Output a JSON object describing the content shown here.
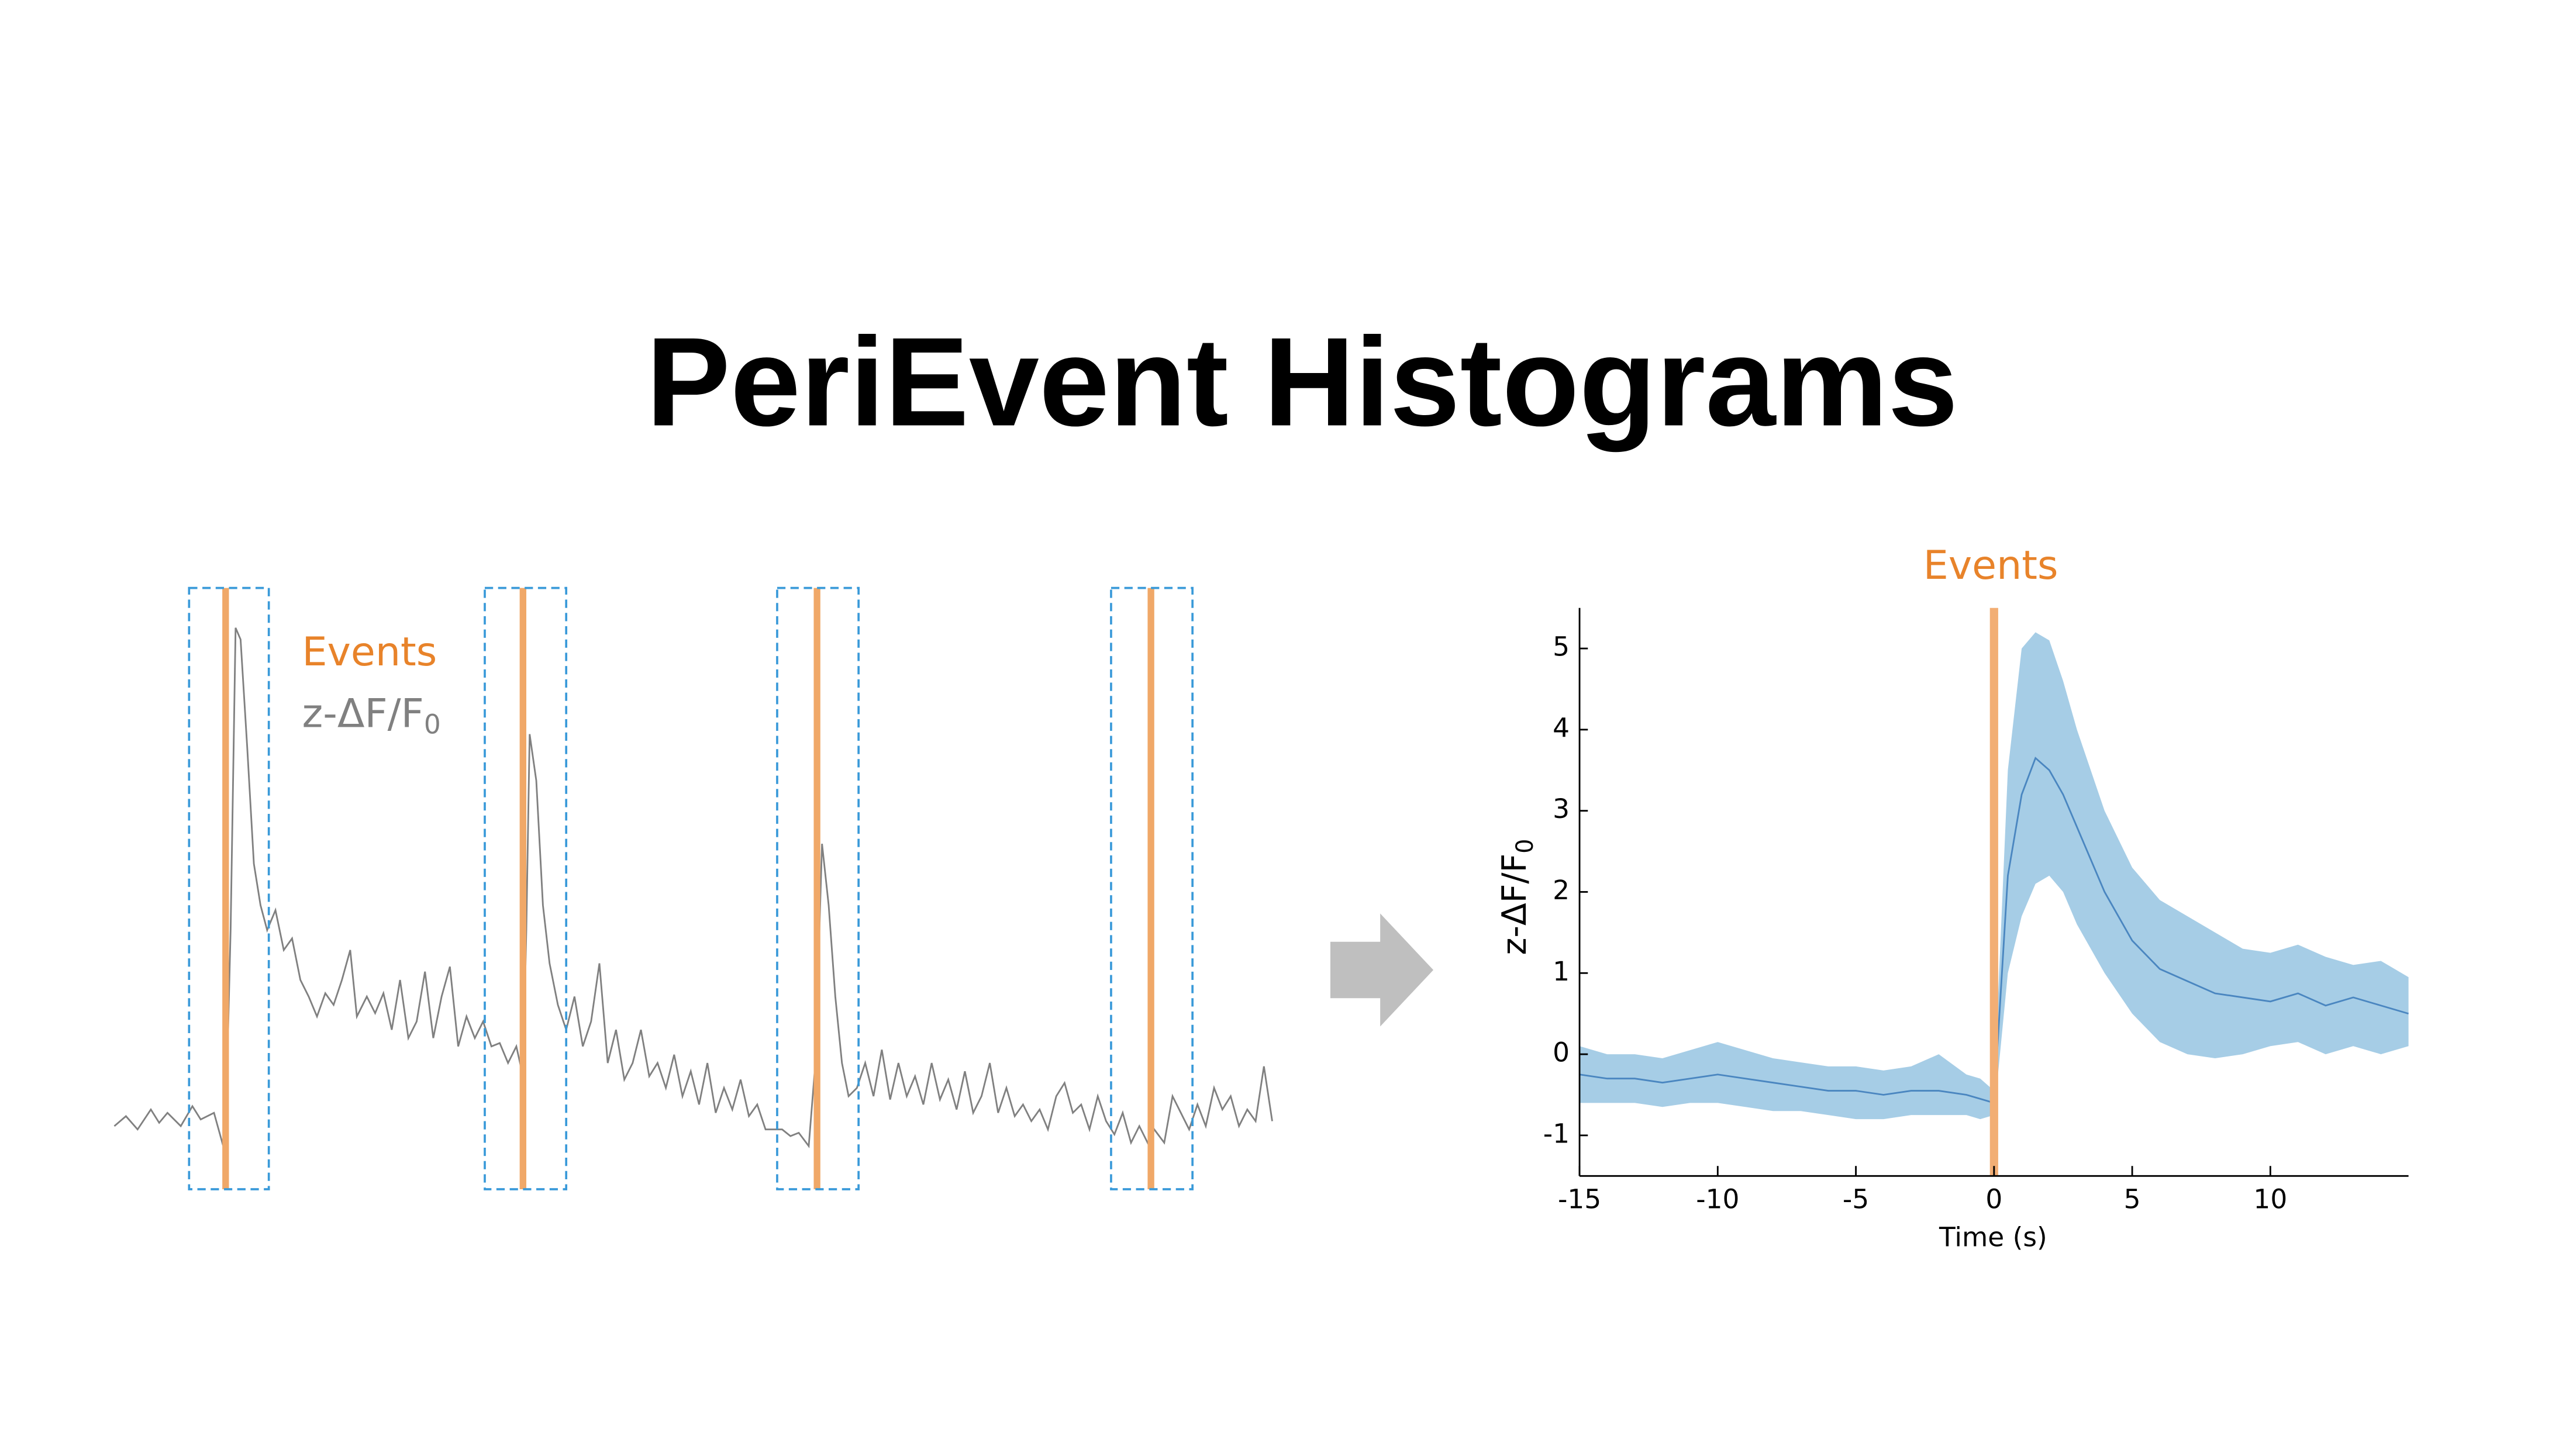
{
  "title": "PeriEvent Histograms",
  "schematic": {
    "events_label": "Events",
    "trace_label": {
      "main": "z-ΔF/F",
      "sub": "0"
    }
  },
  "chart_data": {
    "type": "line",
    "annotation": "Events",
    "x_label": "Time (s)",
    "y_label": {
      "main": "z-ΔF/F",
      "sub": "0"
    },
    "event_x": 0,
    "event_color": "#f2ae74",
    "x": [
      -15,
      -14,
      -13,
      -12,
      -11,
      -10,
      -9,
      -8,
      -7,
      -6,
      -5,
      -4,
      -3,
      -2,
      -1,
      -0.5,
      0,
      0.5,
      1,
      1.5,
      2,
      2.5,
      3,
      4,
      5,
      6,
      7,
      8,
      9,
      10,
      11,
      12,
      13,
      14,
      15
    ],
    "series": [
      {
        "color": "#4a86c0",
        "band_color": "#a6cde6",
        "values": [
          -0.25,
          -0.3,
          -0.3,
          -0.35,
          -0.3,
          -0.25,
          -0.3,
          -0.35,
          -0.4,
          -0.45,
          -0.45,
          -0.5,
          -0.45,
          -0.45,
          -0.5,
          -0.55,
          -0.6,
          2.2,
          3.2,
          3.65,
          3.5,
          3.2,
          2.8,
          2.0,
          1.4,
          1.05,
          0.9,
          0.75,
          0.7,
          0.65,
          0.75,
          0.6,
          0.7,
          0.6,
          0.5
        ],
        "upper": [
          0.1,
          0.0,
          0.0,
          -0.05,
          0.05,
          0.15,
          0.05,
          -0.05,
          -0.1,
          -0.15,
          -0.15,
          -0.2,
          -0.15,
          0.0,
          -0.25,
          -0.3,
          -0.45,
          3.5,
          5.0,
          5.2,
          5.1,
          4.6,
          4.0,
          3.0,
          2.3,
          1.9,
          1.7,
          1.5,
          1.3,
          1.25,
          1.35,
          1.2,
          1.1,
          1.15,
          0.95
        ],
        "lower": [
          -0.6,
          -0.6,
          -0.6,
          -0.65,
          -0.6,
          -0.6,
          -0.65,
          -0.7,
          -0.7,
          -0.75,
          -0.8,
          -0.8,
          -0.75,
          -0.75,
          -0.75,
          -0.8,
          -0.75,
          1.0,
          1.7,
          2.1,
          2.2,
          2.0,
          1.6,
          1.0,
          0.5,
          0.15,
          0.0,
          -0.05,
          0.0,
          0.1,
          0.15,
          0.0,
          0.1,
          0.0,
          0.1
        ]
      }
    ],
    "xlim": [
      -15,
      15
    ],
    "ylim": [
      -1.5,
      5.5
    ],
    "xticks": [
      -15,
      -10,
      -5,
      0,
      5,
      10
    ],
    "yticks": [
      -1,
      0,
      1,
      2,
      3,
      4,
      5
    ]
  }
}
